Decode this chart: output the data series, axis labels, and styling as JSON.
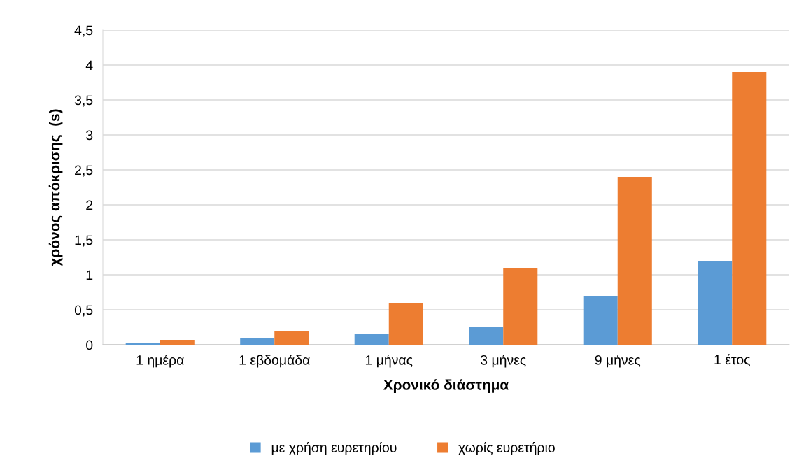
{
  "chart_data": {
    "type": "bar",
    "xlabel": "Χρονικό διάστημα",
    "ylabel": "χρόνος απόκρισης  (s)",
    "categories": [
      "1 ημέρα",
      "1 εβδομάδα",
      "1 μήνας",
      "3 μήνες",
      "9 μήνες",
      "1 έτος"
    ],
    "series": [
      {
        "name": "με χρήση ευρετηρίου",
        "color": "#5b9bd5",
        "values": [
          0.02,
          0.1,
          0.15,
          0.25,
          0.7,
          1.2
        ]
      },
      {
        "name": "χωρίς ευρετήριο",
        "color": "#ed7d31",
        "values": [
          0.07,
          0.2,
          0.6,
          1.1,
          2.4,
          3.9
        ]
      }
    ],
    "ylim": [
      0,
      4.5
    ],
    "yticks": [
      0,
      {
        "value": 0.5,
        "label": "0,5"
      },
      1,
      {
        "value": 1.5,
        "label": "1,5"
      },
      2,
      {
        "value": 2.5,
        "label": "2,5"
      },
      3,
      {
        "value": 3.5,
        "label": "3,5"
      },
      4,
      {
        "value": 4.5,
        "label": "4,5"
      }
    ],
    "grid": "y",
    "legend": "bottom"
  }
}
